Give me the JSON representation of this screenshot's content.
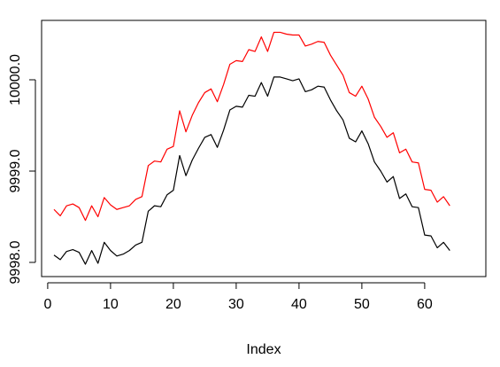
{
  "chart_data": {
    "type": "line",
    "title": "",
    "xlabel": "Index",
    "ylabel": "",
    "xlim": [
      1,
      64
    ],
    "ylim": [
      9997.9,
      10000.55
    ],
    "x_ticks": [
      0,
      10,
      20,
      30,
      40,
      50,
      60
    ],
    "x_tick_labels": [
      "0",
      "10",
      "20",
      "30",
      "40",
      "50",
      "60"
    ],
    "y_ticks": [
      9998.0,
      9999.0,
      10000.0
    ],
    "y_tick_labels": [
      "9998.0",
      "9999.0",
      "10000.0"
    ],
    "grid": false,
    "legend": "none",
    "series": [
      {
        "color": "#000000",
        "values": [
          9998.08,
          9998.03,
          9998.12,
          9998.14,
          9998.11,
          9997.98,
          9998.13,
          9997.99,
          9998.22,
          9998.13,
          9998.07,
          9998.09,
          9998.13,
          9998.19,
          9998.22,
          9998.56,
          9998.62,
          9998.61,
          9998.74,
          9998.79,
          9999.17,
          9998.95,
          9999.12,
          9999.25,
          9999.37,
          9999.4,
          9999.26,
          9999.45,
          9999.67,
          9999.71,
          9999.7,
          9999.83,
          9999.82,
          9999.97,
          9999.82,
          10000.03,
          10000.03,
          10000.01,
          9999.99,
          10000.01,
          9999.87,
          9999.89,
          9999.93,
          9999.92,
          9999.78,
          9999.66,
          9999.56,
          9999.36,
          9999.32,
          9999.44,
          9999.3,
          9999.1,
          9999.0,
          9998.88,
          9998.94,
          9998.7,
          9998.75,
          9998.61,
          9998.6,
          9998.3,
          9998.29,
          9998.16,
          9998.22,
          9998.13
        ]
      },
      {
        "color": "#ff0000",
        "values": [
          9998.58,
          9998.51,
          9998.62,
          9998.64,
          9998.6,
          9998.46,
          9998.62,
          9998.5,
          9998.71,
          9998.63,
          9998.58,
          9998.6,
          9998.62,
          9998.69,
          9998.72,
          9999.06,
          9999.11,
          9999.1,
          9999.24,
          9999.27,
          9999.66,
          9999.43,
          9999.61,
          9999.75,
          9999.86,
          9999.9,
          9999.76,
          9999.95,
          10000.17,
          10000.21,
          10000.2,
          10000.33,
          10000.31,
          10000.47,
          10000.31,
          10000.52,
          10000.52,
          10000.5,
          10000.49,
          10000.49,
          10000.37,
          10000.39,
          10000.42,
          10000.41,
          10000.27,
          10000.16,
          10000.05,
          9999.86,
          9999.82,
          9999.93,
          9999.79,
          9999.59,
          9999.49,
          9999.37,
          9999.42,
          9999.2,
          9999.24,
          9999.1,
          9999.09,
          9998.8,
          9998.79,
          9998.66,
          9998.72,
          9998.62
        ]
      }
    ]
  }
}
